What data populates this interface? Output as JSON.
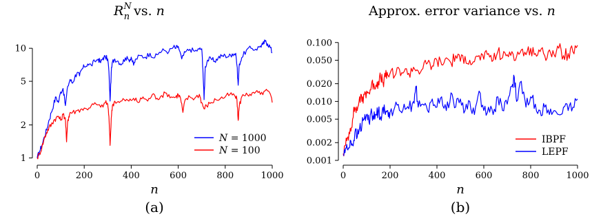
{
  "chart_data": [
    {
      "type": "line",
      "title_main": "R",
      "title_sup": "N",
      "title_sub": "n",
      "title_rest": " vs. ",
      "title_var": "n",
      "xlabel": "n",
      "ylabel": "",
      "caption": "(a)",
      "yscale": "log",
      "xlim": [
        0,
        1000
      ],
      "ylim": [
        0.95,
        13
      ],
      "xticks": [
        0,
        200,
        400,
        600,
        800,
        1000
      ],
      "yticks": [
        1,
        2,
        5,
        10
      ],
      "ytick_labels": [
        "1",
        "2",
        "5",
        "10"
      ],
      "legend_position": "lower-right",
      "series": [
        {
          "name": "N = 1000",
          "name_var": "N",
          "name_rest": " = 1000",
          "color": "#0000ff",
          "x": [
            0,
            10,
            20,
            30,
            40,
            50,
            60,
            70,
            80,
            90,
            100,
            110,
            120,
            130,
            140,
            150,
            160,
            170,
            180,
            190,
            200,
            215,
            230,
            245,
            260,
            270,
            280,
            290,
            300,
            305,
            310,
            315,
            320,
            330,
            345,
            360,
            375,
            390,
            400,
            410,
            420,
            440,
            460,
            480,
            500,
            520,
            540,
            560,
            580,
            590,
            600,
            615,
            630,
            650,
            670,
            690,
            700,
            705,
            710,
            715,
            725,
            740,
            755,
            770,
            785,
            800,
            815,
            830,
            845,
            850,
            855,
            860,
            870,
            890,
            910,
            930,
            950,
            960,
            970,
            980,
            990,
            1000
          ],
          "y": [
            1.0,
            1.15,
            1.3,
            1.55,
            1.8,
            2.2,
            2.6,
            3.1,
            3.6,
            3.2,
            4.0,
            4.3,
            3.0,
            4.5,
            5.2,
            4.8,
            5.5,
            6.0,
            5.6,
            6.4,
            6.8,
            7.2,
            7.0,
            7.6,
            8.0,
            7.4,
            8.2,
            8.3,
            8.0,
            6.2,
            3.3,
            6.0,
            7.5,
            8.0,
            7.6,
            7.2,
            8.2,
            7.8,
            8.3,
            7.0,
            8.0,
            8.6,
            8.3,
            9.0,
            8.2,
            9.2,
            9.6,
            9.3,
            10.3,
            10.0,
            10.4,
            8.0,
            9.2,
            9.8,
            9.4,
            9.8,
            9.9,
            6.5,
            3.4,
            6.8,
            7.8,
            8.0,
            7.6,
            8.2,
            8.5,
            8.6,
            8.4,
            8.9,
            9.0,
            7.0,
            4.6,
            7.2,
            8.2,
            9.6,
            10.0,
            9.8,
            10.5,
            10.8,
            11.6,
            11.0,
            10.4,
            9.1
          ]
        },
        {
          "name": "N = 100",
          "name_var": "N",
          "name_rest": " = 100",
          "color": "#ff0000",
          "x": [
            0,
            10,
            20,
            30,
            40,
            50,
            60,
            70,
            80,
            90,
            100,
            110,
            120,
            125,
            130,
            135,
            140,
            150,
            170,
            190,
            210,
            230,
            250,
            270,
            290,
            300,
            305,
            310,
            315,
            320,
            330,
            350,
            370,
            390,
            410,
            430,
            450,
            470,
            490,
            510,
            530,
            550,
            570,
            590,
            600,
            610,
            620,
            630,
            650,
            670,
            690,
            700,
            710,
            720,
            740,
            760,
            780,
            800,
            820,
            840,
            850,
            855,
            860,
            870,
            890,
            910,
            930,
            950,
            970,
            990,
            1000
          ],
          "y": [
            1.0,
            1.1,
            1.25,
            1.5,
            1.7,
            1.9,
            2.0,
            2.2,
            2.3,
            2.4,
            2.2,
            2.5,
            2.3,
            1.4,
            2.2,
            2.4,
            2.6,
            2.6,
            2.7,
            2.8,
            2.8,
            3.0,
            3.1,
            2.9,
            3.2,
            3.1,
            2.4,
            1.3,
            2.3,
            3.0,
            3.3,
            3.2,
            3.4,
            3.3,
            3.5,
            3.2,
            3.6,
            3.3,
            3.8,
            3.5,
            3.7,
            3.9,
            3.6,
            3.6,
            3.8,
            3.5,
            2.6,
            3.4,
            3.6,
            3.5,
            3.8,
            3.2,
            2.8,
            3.0,
            3.2,
            3.4,
            3.5,
            3.6,
            3.8,
            3.7,
            3.4,
            2.2,
            3.0,
            3.6,
            3.9,
            3.7,
            4.0,
            3.8,
            4.1,
            3.9,
            3.2
          ]
        }
      ]
    },
    {
      "type": "line",
      "title": "Approx. error variance vs. ",
      "title_var": "n",
      "xlabel": "n",
      "ylabel": "",
      "caption": "(b)",
      "yscale": "log",
      "xlim": [
        0,
        1000
      ],
      "ylim": [
        0.001,
        0.13
      ],
      "xticks": [
        0,
        200,
        400,
        600,
        800,
        1000
      ],
      "yticks": [
        0.001,
        0.002,
        0.005,
        0.01,
        0.02,
        0.05,
        0.1
      ],
      "ytick_labels": [
        "0.001",
        "0.002",
        "0.005",
        "0.010",
        "0.020",
        "0.050",
        "0.100"
      ],
      "legend_position": "lower-right",
      "series": [
        {
          "name": "IBPF",
          "color": "#ff0000",
          "x": [
            0,
            10,
            20,
            30,
            40,
            50,
            60,
            70,
            80,
            90,
            100,
            110,
            120,
            130,
            140,
            150,
            160,
            170,
            180,
            190,
            200,
            220,
            240,
            260,
            280,
            300,
            320,
            340,
            360,
            380,
            400,
            420,
            440,
            460,
            480,
            500,
            520,
            540,
            560,
            580,
            600,
            620,
            640,
            660,
            680,
            700,
            720,
            740,
            760,
            780,
            800,
            820,
            840,
            860,
            880,
            900,
            920,
            940,
            960,
            980,
            1000
          ],
          "y": [
            0.0013,
            0.0018,
            0.0025,
            0.0035,
            0.005,
            0.008,
            0.007,
            0.012,
            0.01,
            0.013,
            0.015,
            0.014,
            0.018,
            0.02,
            0.019,
            0.022,
            0.025,
            0.021,
            0.026,
            0.028,
            0.03,
            0.027,
            0.035,
            0.032,
            0.03,
            0.038,
            0.033,
            0.036,
            0.045,
            0.04,
            0.05,
            0.042,
            0.055,
            0.045,
            0.06,
            0.048,
            0.058,
            0.05,
            0.047,
            0.06,
            0.052,
            0.065,
            0.05,
            0.07,
            0.055,
            0.062,
            0.07,
            0.058,
            0.075,
            0.062,
            0.08,
            0.065,
            0.07,
            0.06,
            0.075,
            0.062,
            0.08,
            0.06,
            0.065,
            0.07,
            0.09
          ]
        },
        {
          "name": "LEPF",
          "color": "#0000ff",
          "x": [
            0,
            10,
            20,
            30,
            40,
            50,
            60,
            70,
            80,
            90,
            100,
            110,
            120,
            130,
            140,
            150,
            160,
            170,
            180,
            190,
            200,
            220,
            240,
            260,
            280,
            300,
            310,
            320,
            340,
            360,
            380,
            400,
            420,
            440,
            460,
            480,
            500,
            520,
            540,
            560,
            580,
            600,
            620,
            640,
            660,
            680,
            700,
            720,
            730,
            740,
            760,
            780,
            800,
            820,
            840,
            860,
            880,
            900,
            920,
            940,
            960,
            980,
            1000
          ],
          "y": [
            0.0012,
            0.0016,
            0.0015,
            0.0022,
            0.0018,
            0.003,
            0.0025,
            0.0035,
            0.004,
            0.005,
            0.006,
            0.0045,
            0.0075,
            0.005,
            0.006,
            0.007,
            0.0055,
            0.008,
            0.006,
            0.007,
            0.0065,
            0.008,
            0.007,
            0.009,
            0.0075,
            0.01,
            0.018,
            0.008,
            0.009,
            0.007,
            0.011,
            0.008,
            0.012,
            0.007,
            0.014,
            0.008,
            0.011,
            0.007,
            0.01,
            0.006,
            0.015,
            0.007,
            0.008,
            0.006,
            0.012,
            0.007,
            0.009,
            0.018,
            0.026,
            0.01,
            0.022,
            0.008,
            0.012,
            0.009,
            0.007,
            0.008,
            0.006,
            0.007,
            0.006,
            0.008,
            0.007,
            0.008,
            0.011
          ]
        }
      ]
    }
  ]
}
